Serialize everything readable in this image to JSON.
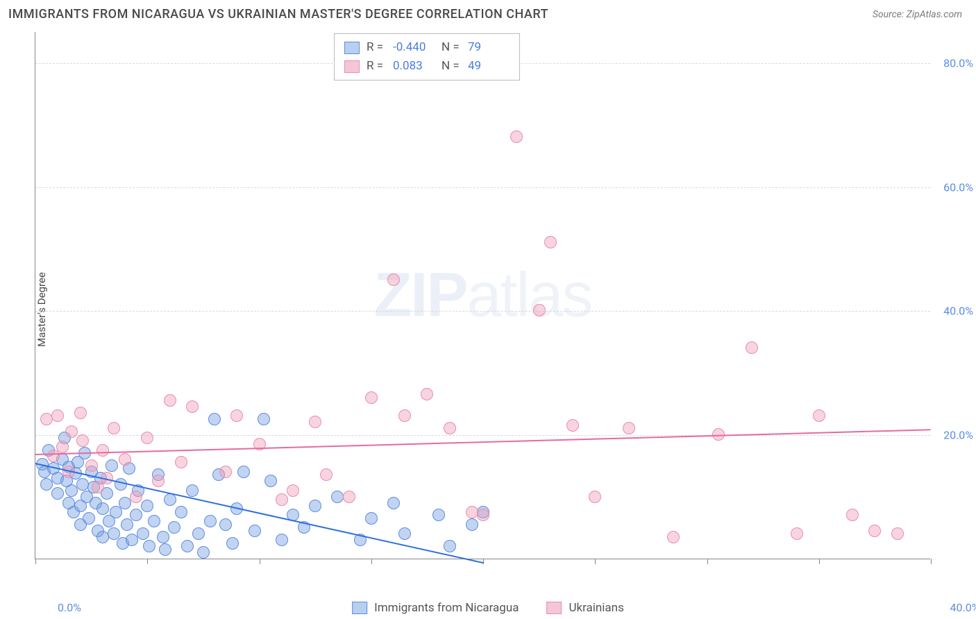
{
  "title": "IMMIGRANTS FROM NICARAGUA VS UKRAINIAN MASTER'S DEGREE CORRELATION CHART",
  "source_label": "Source: ZipAtlas.com",
  "y_axis_label": "Master's Degree",
  "watermark": {
    "bold": "ZIP",
    "rest": "atlas"
  },
  "chart": {
    "type": "scatter",
    "background_color": "#ffffff",
    "grid_color": "#d8d8d8",
    "axis_color": "#888888",
    "xlim": [
      0,
      40
    ],
    "ylim": [
      0,
      85
    ],
    "xtick_positions": [
      0,
      5,
      10,
      15,
      20,
      25,
      30,
      35,
      40
    ],
    "xtick_labels": [
      "0.0%",
      "",
      "",
      "",
      "",
      "",
      "",
      "",
      "40.0%"
    ],
    "ytick_positions": [
      20,
      40,
      60,
      80
    ],
    "ytick_labels": [
      "20.0%",
      "40.0%",
      "60.0%",
      "80.0%"
    ],
    "xtick_label_color": "#5b8de0",
    "ytick_label_color": "#5b8de0",
    "label_fontsize": 16,
    "marker_radius": 9,
    "marker_opacity": 0.55,
    "series": [
      {
        "name": "Immigrants from Nicaragua",
        "color_fill": "rgba(120,160,225,0.45)",
        "color_stroke": "#5b8de0",
        "swatch_fill": "#b8cff0",
        "swatch_border": "#5b8de0",
        "trend_color": "#2e6fe0",
        "trend": {
          "x1": 0,
          "y1": 15.5,
          "x2": 20,
          "y2": -0.5
        },
        "stats": {
          "R": "-0.440",
          "N": "79"
        },
        "points": [
          [
            0.3,
            15.2
          ],
          [
            0.4,
            14.0
          ],
          [
            0.5,
            12.0
          ],
          [
            0.6,
            17.5
          ],
          [
            0.8,
            14.5
          ],
          [
            1.0,
            13.0
          ],
          [
            1.0,
            10.5
          ],
          [
            1.2,
            16.0
          ],
          [
            1.3,
            19.5
          ],
          [
            1.4,
            12.5
          ],
          [
            1.5,
            9.0
          ],
          [
            1.5,
            14.8
          ],
          [
            1.6,
            11.0
          ],
          [
            1.7,
            7.5
          ],
          [
            1.8,
            13.8
          ],
          [
            1.9,
            15.5
          ],
          [
            2.0,
            8.5
          ],
          [
            2.0,
            5.5
          ],
          [
            2.1,
            12.0
          ],
          [
            2.2,
            17.0
          ],
          [
            2.3,
            10.0
          ],
          [
            2.4,
            6.5
          ],
          [
            2.5,
            14.0
          ],
          [
            2.6,
            11.5
          ],
          [
            2.7,
            9.0
          ],
          [
            2.8,
            4.5
          ],
          [
            2.9,
            13.0
          ],
          [
            3.0,
            8.0
          ],
          [
            3.0,
            3.5
          ],
          [
            3.2,
            10.5
          ],
          [
            3.3,
            6.0
          ],
          [
            3.4,
            15.0
          ],
          [
            3.5,
            4.0
          ],
          [
            3.6,
            7.5
          ],
          [
            3.8,
            12.0
          ],
          [
            3.9,
            2.5
          ],
          [
            4.0,
            9.0
          ],
          [
            4.1,
            5.5
          ],
          [
            4.2,
            14.5
          ],
          [
            4.3,
            3.0
          ],
          [
            4.5,
            7.0
          ],
          [
            4.6,
            11.0
          ],
          [
            4.8,
            4.0
          ],
          [
            5.0,
            8.5
          ],
          [
            5.1,
            2.0
          ],
          [
            5.3,
            6.0
          ],
          [
            5.5,
            13.5
          ],
          [
            5.7,
            3.5
          ],
          [
            5.8,
            1.5
          ],
          [
            6.0,
            9.5
          ],
          [
            6.2,
            5.0
          ],
          [
            6.5,
            7.5
          ],
          [
            6.8,
            2.0
          ],
          [
            7.0,
            11.0
          ],
          [
            7.3,
            4.0
          ],
          [
            7.5,
            1.0
          ],
          [
            7.8,
            6.0
          ],
          [
            8.0,
            22.5
          ],
          [
            8.2,
            13.5
          ],
          [
            8.5,
            5.5
          ],
          [
            8.8,
            2.5
          ],
          [
            9.0,
            8.0
          ],
          [
            9.3,
            14.0
          ],
          [
            9.8,
            4.5
          ],
          [
            10.2,
            22.5
          ],
          [
            10.5,
            12.5
          ],
          [
            11.0,
            3.0
          ],
          [
            11.5,
            7.0
          ],
          [
            12.0,
            5.0
          ],
          [
            12.5,
            8.5
          ],
          [
            13.5,
            10.0
          ],
          [
            14.5,
            3.0
          ],
          [
            15.0,
            6.5
          ],
          [
            16.0,
            9.0
          ],
          [
            16.5,
            4.0
          ],
          [
            18.0,
            7.0
          ],
          [
            18.5,
            2.0
          ],
          [
            19.5,
            5.5
          ],
          [
            20.0,
            7.5
          ]
        ]
      },
      {
        "name": "Ukrainians",
        "color_fill": "rgba(240,160,185,0.45)",
        "color_stroke": "#e98bb0",
        "swatch_fill": "#f4c7d6",
        "swatch_border": "#e98bb0",
        "trend_color": "#e76aa0",
        "trend": {
          "x1": 0,
          "y1": 17.0,
          "x2": 40,
          "y2": 21.0
        },
        "stats": {
          "R": "0.083",
          "N": "49"
        },
        "points": [
          [
            0.5,
            22.5
          ],
          [
            0.8,
            16.5
          ],
          [
            1.0,
            23.0
          ],
          [
            1.2,
            18.0
          ],
          [
            1.5,
            14.0
          ],
          [
            1.6,
            20.5
          ],
          [
            2.0,
            23.5
          ],
          [
            2.1,
            19.0
          ],
          [
            2.5,
            15.0
          ],
          [
            2.8,
            11.5
          ],
          [
            3.0,
            17.5
          ],
          [
            3.2,
            13.0
          ],
          [
            3.5,
            21.0
          ],
          [
            4.0,
            16.0
          ],
          [
            4.5,
            10.0
          ],
          [
            5.0,
            19.5
          ],
          [
            5.5,
            12.5
          ],
          [
            6.0,
            25.5
          ],
          [
            6.5,
            15.5
          ],
          [
            7.0,
            24.5
          ],
          [
            8.5,
            14.0
          ],
          [
            9.0,
            23.0
          ],
          [
            10.0,
            18.5
          ],
          [
            11.0,
            9.5
          ],
          [
            11.5,
            11.0
          ],
          [
            12.5,
            22.0
          ],
          [
            13.0,
            13.5
          ],
          [
            14.0,
            10.0
          ],
          [
            15.0,
            26.0
          ],
          [
            16.0,
            45.0
          ],
          [
            16.5,
            23.0
          ],
          [
            17.5,
            26.5
          ],
          [
            18.5,
            21.0
          ],
          [
            19.5,
            7.5
          ],
          [
            20.0,
            7.0
          ],
          [
            21.5,
            68.0
          ],
          [
            22.5,
            40.0
          ],
          [
            23.0,
            51.0
          ],
          [
            24.0,
            21.5
          ],
          [
            25.0,
            10.0
          ],
          [
            26.5,
            21.0
          ],
          [
            28.5,
            3.5
          ],
          [
            30.5,
            20.0
          ],
          [
            32.0,
            34.0
          ],
          [
            34.0,
            4.0
          ],
          [
            35.0,
            23.0
          ],
          [
            36.5,
            7.0
          ],
          [
            37.5,
            4.5
          ],
          [
            38.5,
            4.0
          ]
        ]
      }
    ]
  },
  "legend_bottom": {
    "items": [
      {
        "label": "Immigrants from Nicaragua",
        "fill": "#b8cff0",
        "border": "#5b8de0"
      },
      {
        "label": "Ukrainians",
        "fill": "#f4c7d6",
        "border": "#e98bb0"
      }
    ]
  }
}
